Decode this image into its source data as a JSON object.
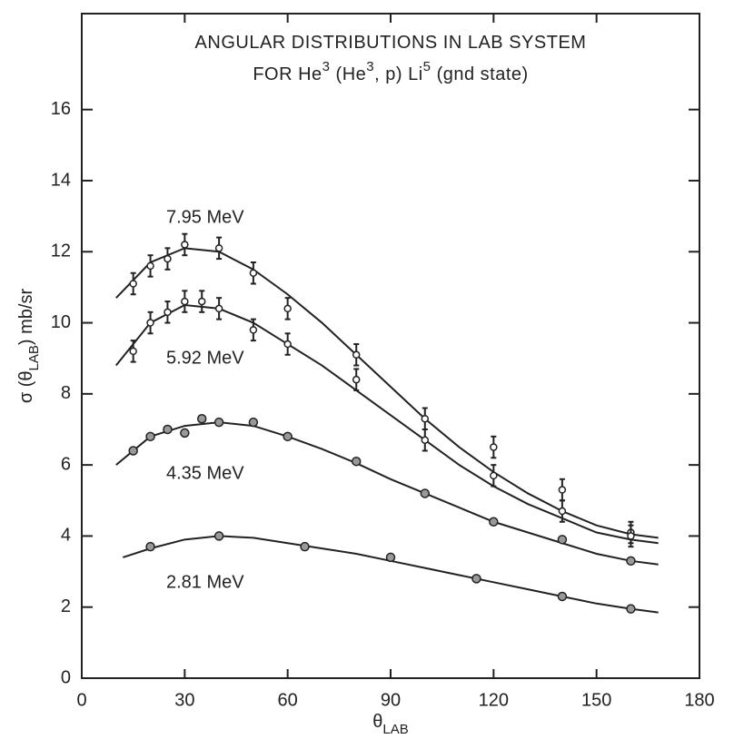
{
  "chart_data": {
    "type": "scatter",
    "title_lines": [
      [
        "ANGULAR DISTRIBUTIONS   IN   LAB   SYSTEM"
      ],
      [
        "FOR  He",
        "3",
        " (He",
        "3",
        ", p) Li",
        "5",
        " (gnd state)"
      ]
    ],
    "x_label": [
      "θ",
      "LAB"
    ],
    "y_label": [
      "σ  (θ",
      "LAB",
      ")  mb/sr"
    ],
    "xlim": [
      0,
      180
    ],
    "ylim": [
      0,
      18.7
    ],
    "xticks": [
      0,
      30,
      60,
      90,
      120,
      150,
      180
    ],
    "yticks": [
      0,
      2,
      4,
      6,
      8,
      10,
      12,
      14,
      16
    ],
    "color": "#222222",
    "series": [
      {
        "name": "7.95  MeV",
        "x": [
          15,
          20,
          25,
          30,
          40,
          50,
          60,
          80,
          100,
          120,
          140,
          160
        ],
        "values": [
          11.1,
          11.6,
          11.8,
          12.2,
          12.1,
          11.4,
          10.4,
          9.1,
          7.3,
          6.5,
          5.3,
          4.1
        ],
        "errors": [
          0.3,
          0.3,
          0.3,
          0.3,
          0.3,
          0.3,
          0.3,
          0.3,
          0.3,
          0.3,
          0.3,
          0.3
        ],
        "fit_x": [
          10,
          20,
          30,
          40,
          50,
          60,
          70,
          80,
          90,
          100,
          110,
          120,
          130,
          140,
          150,
          160,
          168
        ],
        "fit_values": [
          10.7,
          11.7,
          12.1,
          12.0,
          11.5,
          10.8,
          10.0,
          9.1,
          8.2,
          7.3,
          6.5,
          5.8,
          5.2,
          4.7,
          4.3,
          4.05,
          3.95
        ]
      },
      {
        "name": "5.92  MeV",
        "x": [
          15,
          20,
          25,
          30,
          35,
          40,
          50,
          60,
          80,
          100,
          120,
          140,
          160
        ],
        "values": [
          9.2,
          10.0,
          10.3,
          10.6,
          10.6,
          10.4,
          9.8,
          9.4,
          8.4,
          6.7,
          5.7,
          4.7,
          4.0
        ],
        "errors": [
          0.3,
          0.3,
          0.3,
          0.3,
          0.3,
          0.3,
          0.3,
          0.3,
          0.3,
          0.3,
          0.3,
          0.3,
          0.3
        ],
        "fit_x": [
          10,
          20,
          30,
          40,
          50,
          60,
          70,
          80,
          90,
          100,
          110,
          120,
          130,
          140,
          150,
          160,
          168
        ],
        "fit_values": [
          8.8,
          10.0,
          10.5,
          10.4,
          10.0,
          9.4,
          8.8,
          8.1,
          7.4,
          6.7,
          6.0,
          5.4,
          4.9,
          4.5,
          4.1,
          3.9,
          3.8
        ]
      },
      {
        "name": "4.35  MeV",
        "x": [
          15,
          20,
          25,
          30,
          35,
          40,
          50,
          60,
          80,
          100,
          120,
          140,
          160
        ],
        "values": [
          6.4,
          6.8,
          7.0,
          6.9,
          7.3,
          7.2,
          7.2,
          6.8,
          6.1,
          5.2,
          4.4,
          3.9,
          3.3
        ],
        "fit_x": [
          10,
          20,
          30,
          40,
          50,
          60,
          70,
          80,
          90,
          100,
          110,
          120,
          130,
          140,
          150,
          160,
          168
        ],
        "fit_values": [
          6.0,
          6.8,
          7.1,
          7.2,
          7.1,
          6.8,
          6.45,
          6.05,
          5.6,
          5.2,
          4.8,
          4.4,
          4.1,
          3.8,
          3.5,
          3.3,
          3.2
        ]
      },
      {
        "name": "2.81  MeV",
        "x": [
          20,
          40,
          65,
          90,
          115,
          140,
          160
        ],
        "values": [
          3.7,
          4.0,
          3.7,
          3.4,
          2.8,
          2.3,
          1.95
        ],
        "fit_x": [
          12,
          20,
          30,
          40,
          50,
          60,
          70,
          80,
          90,
          100,
          110,
          120,
          130,
          140,
          150,
          160,
          168
        ],
        "fit_values": [
          3.4,
          3.65,
          3.9,
          4.0,
          3.95,
          3.8,
          3.65,
          3.5,
          3.3,
          3.1,
          2.9,
          2.7,
          2.5,
          2.3,
          2.1,
          1.95,
          1.85
        ]
      }
    ]
  }
}
